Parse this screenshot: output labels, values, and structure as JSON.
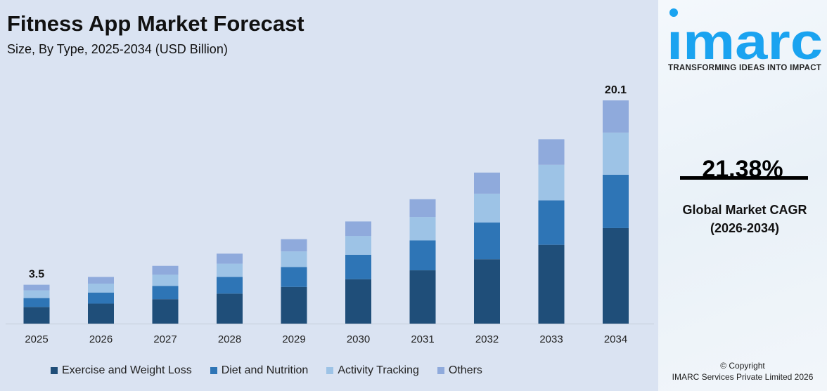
{
  "header": {
    "title": "Fitness App Market Forecast",
    "subtitle": "Size, By Type, 2025-2034 (USD Billion)"
  },
  "chart_data": {
    "type": "bar",
    "stacked": true,
    "title": "Fitness App Market Forecast",
    "subtitle": "Size, By Type, 2025-2034 (USD Billion)",
    "xlabel": "",
    "ylabel": "",
    "categories": [
      "2025",
      "2026",
      "2027",
      "2028",
      "2029",
      "2030",
      "2031",
      "2032",
      "2033",
      "2034"
    ],
    "series": [
      {
        "name": "Exercise and Weight Loss",
        "color": "#1f4e79",
        "values": [
          1.5,
          1.8,
          2.2,
          2.7,
          3.3,
          4.0,
          4.8,
          5.8,
          7.1,
          8.6
        ]
      },
      {
        "name": "Diet and Nutrition",
        "color": "#2e75b6",
        "values": [
          0.8,
          1.0,
          1.2,
          1.5,
          1.8,
          2.2,
          2.7,
          3.3,
          4.0,
          4.8
        ]
      },
      {
        "name": "Activity Tracking",
        "color": "#9dc3e6",
        "values": [
          0.7,
          0.8,
          1.0,
          1.2,
          1.4,
          1.7,
          2.1,
          2.6,
          3.2,
          3.8
        ]
      },
      {
        "name": "Others",
        "color": "#8faadc",
        "values": [
          0.5,
          0.6,
          0.8,
          0.9,
          1.1,
          1.3,
          1.6,
          1.9,
          2.3,
          2.9
        ]
      }
    ],
    "data_labels": [
      {
        "category": "2025",
        "text": "3.5"
      },
      {
        "category": "2034",
        "text": "20.1"
      }
    ],
    "ylim": [
      0,
      20.1
    ],
    "grid": false,
    "legend": "bottom"
  },
  "brand": {
    "logo": "imarc",
    "tagline": "TRANSFORMING IDEAS INTO IMPACT",
    "color": "#1aa3f0"
  },
  "stat": {
    "value": "21.38%",
    "label": "Global Market CAGR",
    "period": "(2026-2034)"
  },
  "footer": {
    "copyright": "© Copyright",
    "company": "IMARC Services Private Limited 2026"
  }
}
